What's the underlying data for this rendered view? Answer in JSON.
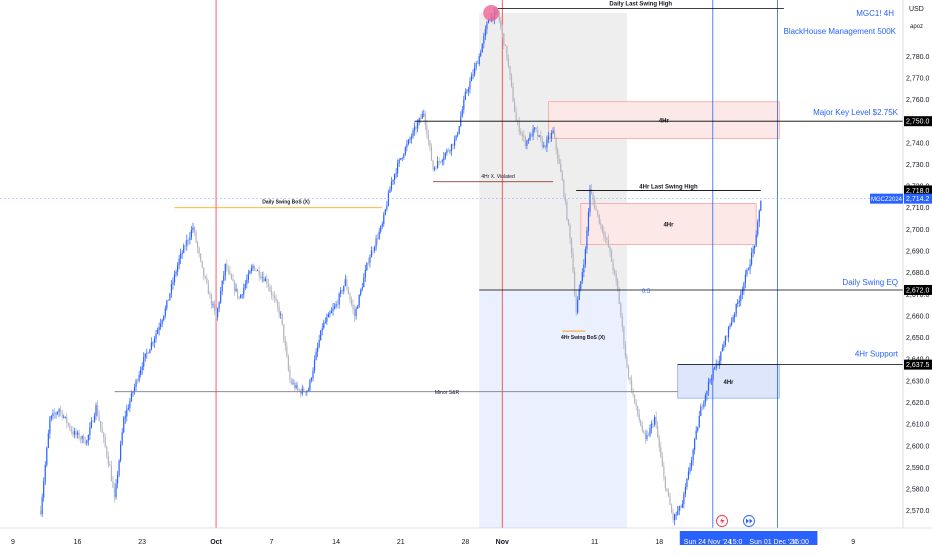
{
  "header": {
    "symbol_line": "MGC1! 4H",
    "account_line": "BlackHouse Management 500K",
    "currency": "USD",
    "scale_mode": "apoz"
  },
  "colors": {
    "up": "#2962ff",
    "down": "#b2b5be",
    "accent": "#2962ff",
    "date_line": "#f23645",
    "zone_red_fill": "#fde8e8",
    "zone_red_border": "#f5a3a3",
    "zone_blue_fill": "#dde6fb",
    "range_gray": "#eeeeee",
    "range_blue": "#eaf0fd",
    "orange": "#ff9800",
    "brown": "#8b1a1a"
  },
  "icons": {
    "flash_icon": "lightning-icon",
    "forward_icon": "fast-forward-icon"
  },
  "chart_data": {
    "type": "candlestick",
    "title": "MGC1! 4H",
    "y_axis": {
      "ticks": [
        2570,
        2580,
        2590,
        2600,
        2610,
        2620,
        2630,
        2640,
        2650,
        2660,
        2670,
        2680,
        2690,
        2700,
        2710,
        2720,
        2730,
        2740,
        2750,
        2760,
        2770,
        2780,
        2790,
        2800
      ],
      "tick_labels": [
        "2,570.0",
        "2,580.0",
        "2,590.0",
        "2,600.0",
        "2,610.0",
        "2,620.0",
        "2,630.0",
        "2,640.0",
        "2,650.0",
        "2,660.0",
        "2,670.0",
        "2,680.0",
        "2,690.0",
        "2,700.0",
        "2,710.0",
        "2,720.0",
        "2,730.0",
        "2,740.0",
        "2,750.0",
        "2,760.0",
        "2,770.0",
        "2,780.0",
        "2,790.0",
        "2,800.0"
      ],
      "range": [
        2562,
        2806
      ]
    },
    "x_axis": {
      "ticks": [
        {
          "label": "9",
          "t": 0
        },
        {
          "label": "16",
          "t": 7
        },
        {
          "label": "23",
          "t": 14
        },
        {
          "label": "Oct",
          "t": 22,
          "bold": true
        },
        {
          "label": "7",
          "t": 28
        },
        {
          "label": "14",
          "t": 35
        },
        {
          "label": "21",
          "t": 42
        },
        {
          "label": "28",
          "t": 49
        },
        {
          "label": "Nov",
          "t": 53,
          "bold": true
        },
        {
          "label": "11",
          "t": 63
        },
        {
          "label": "18",
          "t": 70
        },
        {
          "label": "9",
          "t": 91
        }
      ],
      "range": [
        -1.4,
        96.4
      ],
      "cursor_labels": [
        "Sun 24 Nov '24",
        "15:0",
        "Sun 01 Dec '24",
        "15:00"
      ]
    },
    "price_path": [
      {
        "t": 3,
        "p": 2570
      },
      {
        "t": 4,
        "p": 2612
      },
      {
        "t": 5,
        "p": 2617
      },
      {
        "t": 6.5,
        "p": 2606
      },
      {
        "t": 8,
        "p": 2602
      },
      {
        "t": 9,
        "p": 2618
      },
      {
        "t": 10.5,
        "p": 2590
      },
      {
        "t": 11,
        "p": 2575
      },
      {
        "t": 12,
        "p": 2612
      },
      {
        "t": 13,
        "p": 2625
      },
      {
        "t": 14,
        "p": 2638
      },
      {
        "t": 15.5,
        "p": 2652
      },
      {
        "t": 16.5,
        "p": 2663
      },
      {
        "t": 18,
        "p": 2686
      },
      {
        "t": 19.5,
        "p": 2701
      },
      {
        "t": 20.5,
        "p": 2681
      },
      {
        "t": 22,
        "p": 2659
      },
      {
        "t": 23,
        "p": 2683
      },
      {
        "t": 24.5,
        "p": 2668
      },
      {
        "t": 26,
        "p": 2683
      },
      {
        "t": 27.5,
        "p": 2676
      },
      {
        "t": 29,
        "p": 2660
      },
      {
        "t": 30,
        "p": 2630
      },
      {
        "t": 31,
        "p": 2625
      },
      {
        "t": 32,
        "p": 2626
      },
      {
        "t": 33.5,
        "p": 2655
      },
      {
        "t": 35,
        "p": 2665
      },
      {
        "t": 36,
        "p": 2676
      },
      {
        "t": 37,
        "p": 2660
      },
      {
        "t": 38.5,
        "p": 2686
      },
      {
        "t": 40,
        "p": 2702
      },
      {
        "t": 41,
        "p": 2722
      },
      {
        "t": 42,
        "p": 2733
      },
      {
        "t": 43.5,
        "p": 2746
      },
      {
        "t": 44.5,
        "p": 2754
      },
      {
        "t": 45.5,
        "p": 2728
      },
      {
        "t": 47,
        "p": 2736
      },
      {
        "t": 48,
        "p": 2742
      },
      {
        "t": 49,
        "p": 2762
      },
      {
        "t": 50.5,
        "p": 2780
      },
      {
        "t": 51.5,
        "p": 2797
      },
      {
        "t": 52.5,
        "p": 2800
      },
      {
        "t": 53.5,
        "p": 2780
      },
      {
        "t": 54.5,
        "p": 2750
      },
      {
        "t": 55.5,
        "p": 2740
      },
      {
        "t": 56.5,
        "p": 2746
      },
      {
        "t": 57.5,
        "p": 2738
      },
      {
        "t": 58.5,
        "p": 2745
      },
      {
        "t": 59.5,
        "p": 2722
      },
      {
        "t": 60.5,
        "p": 2690
      },
      {
        "t": 61,
        "p": 2662
      },
      {
        "t": 62,
        "p": 2690
      },
      {
        "t": 62.5,
        "p": 2718
      },
      {
        "t": 63.5,
        "p": 2704
      },
      {
        "t": 64.5,
        "p": 2692
      },
      {
        "t": 65.5,
        "p": 2672
      },
      {
        "t": 66.5,
        "p": 2636
      },
      {
        "t": 67.5,
        "p": 2617
      },
      {
        "t": 68.5,
        "p": 2602
      },
      {
        "t": 69.5,
        "p": 2613
      },
      {
        "t": 70.5,
        "p": 2585
      },
      {
        "t": 71.5,
        "p": 2566
      },
      {
        "t": 72.5,
        "p": 2573
      },
      {
        "t": 73.5,
        "p": 2594
      },
      {
        "t": 74.5,
        "p": 2617
      },
      {
        "t": 75.5,
        "p": 2631
      },
      {
        "t": 76.5,
        "p": 2640
      },
      {
        "t": 77.5,
        "p": 2654
      },
      {
        "t": 78.5,
        "p": 2666
      },
      {
        "t": 79.5,
        "p": 2680
      },
      {
        "t": 80.5,
        "p": 2696
      },
      {
        "t": 81,
        "p": 2714.2
      }
    ],
    "horizontal_levels": [
      {
        "label": "Daily Last Swing High",
        "price": 2802,
        "t_start": 52.5,
        "t_end": 83.5,
        "color": "#000000"
      },
      {
        "label": "Major Key Level $2.75K",
        "price": 2750,
        "t_start": 43.5,
        "t_end": 96.4,
        "color": "#000000",
        "axis_tag": "2,750.0"
      },
      {
        "label": "4Hr Last Swing High",
        "price": 2718,
        "t_start": 61,
        "t_end": 81,
        "color": "#000000",
        "axis_tag": "2,718.0"
      },
      {
        "label": "Daily Swing EQ",
        "price": 2672,
        "t_start": 50.5,
        "t_end": 96.4,
        "color": "#000000",
        "axis_tag": "2,672.0",
        "mid_label": "0.5"
      },
      {
        "label": "4Hr Support",
        "price": 2637.5,
        "t_start": 72,
        "t_end": 96.4,
        "color": "#000000",
        "axis_tag": "2,637.5"
      },
      {
        "label": "Minor S&R",
        "price": 2625,
        "t_start": 11,
        "t_end": 72,
        "color": "#787b86"
      },
      {
        "label": "Daily Swing BoS (X)",
        "price": 2710,
        "t_start": 17.5,
        "t_end": 40,
        "color": "#ff9800"
      },
      {
        "label": "4Hr X. Violated",
        "price": 2722,
        "t_start": 45.5,
        "t_end": 58.5,
        "color": "#8b1a1a"
      },
      {
        "label": "4Hr Swing BoS (X)",
        "price": 2653,
        "t_start": 59.5,
        "t_end": 62,
        "color": "#ff9800"
      },
      {
        "label": "Current price",
        "price": 2714.2,
        "t_start": -1.4,
        "t_end": 96.4,
        "color": "#9bb5f7",
        "axis_tag": "2,714.2",
        "symbol_tag": "MGCZ2024"
      }
    ],
    "zones": [
      {
        "label": "4Hr",
        "t_start": 58,
        "t_end": 83,
        "p_low": 2742,
        "p_high": 2759,
        "kind": "red"
      },
      {
        "label": "4Hr",
        "t_start": 61.5,
        "t_end": 80.5,
        "p_low": 2693,
        "p_high": 2712,
        "kind": "red"
      },
      {
        "label": "4Hr",
        "t_start": 72,
        "t_end": 83,
        "p_low": 2622,
        "p_high": 2637.5,
        "kind": "blue"
      }
    ],
    "date_ranges": [
      {
        "t_start": 50.5,
        "t_end": 66.5,
        "p_low": 2672,
        "p_high": 2800,
        "kind": "gray"
      },
      {
        "t_start": 50.5,
        "t_end": 66.5,
        "p_low": 2562,
        "p_high": 2672,
        "kind": "blue"
      }
    ],
    "vertical_lines": [
      {
        "t": 22,
        "color": "#f23645"
      },
      {
        "t": 53,
        "color": "#f23645"
      },
      {
        "t": 75.8,
        "color": "#2962ff"
      },
      {
        "t": 82.8,
        "color": "#2962ff"
      }
    ],
    "markers": [
      {
        "kind": "swing-high-circle",
        "t": 51.8,
        "price": 2800,
        "color": "#f06292"
      }
    ],
    "grid": false,
    "legend": "top-right"
  }
}
